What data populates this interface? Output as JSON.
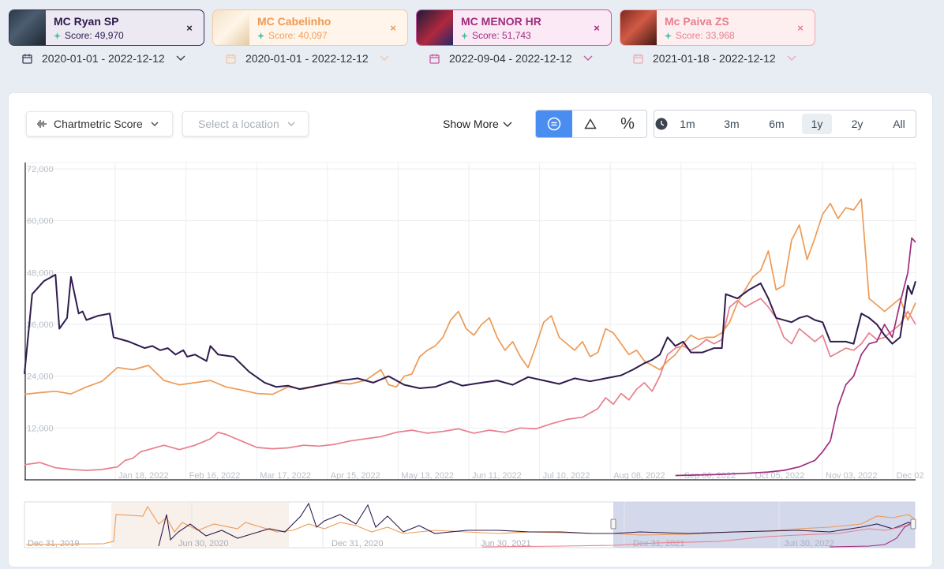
{
  "artists": [
    {
      "name": "MC Ryan SP",
      "score_label": "Score:",
      "score": "49,970",
      "date_range": "2020-01-01 - 2022-12-12",
      "color": "#2f1b4e",
      "bg": "#ece9f3",
      "border": "#3a2657",
      "score_color": "#2f1b4e",
      "close": "×"
    },
    {
      "name": "MC Cabelinho",
      "score_label": "Score:",
      "score": "40,097",
      "date_range": "2020-01-01 - 2022-12-12",
      "color": "#ee9a55",
      "bg": "#fff5ea",
      "border": "#f5c79d",
      "score_color": "#f0a05f",
      "close": "×"
    },
    {
      "name": "MC MENOR HR",
      "score_label": "Score:",
      "score": "51,743",
      "date_range": "2022-09-04 - 2022-12-12",
      "color": "#a02c7e",
      "bg": "#fbeaf5",
      "border": "#c7579f",
      "score_color": "#a02c7e",
      "close": "×"
    },
    {
      "name": "Mc Paiva ZS",
      "score_label": "Score:",
      "score": "33,968",
      "date_range": "2021-01-18 - 2022-12-12",
      "color": "#e87f8c",
      "bg": "#fdeef0",
      "border": "#f2a9b2",
      "score_color": "#e5828f",
      "close": "×"
    }
  ],
  "toolbar": {
    "metric_label": "Chartmetric Score",
    "location_placeholder": "Select a location",
    "show_more_label": "Show More",
    "ranges": [
      "1m",
      "3m",
      "6m",
      "1y",
      "2y",
      "All"
    ],
    "active_range": "1y"
  },
  "chart_data": {
    "type": "line",
    "y_ticks": [
      "72,000",
      "60,000",
      "48,000",
      "36,000",
      "24,000",
      "12,000"
    ],
    "x_ticks": [
      "Jan 18, 2022",
      "Feb 16, 2022",
      "Mar 17, 2022",
      "Apr 15, 2022",
      "May 13, 2022",
      "Jun 11, 2022",
      "Jul 10, 2022",
      "Aug 08, 2022",
      "Sep 06, 2022",
      "Oct 05, 2022",
      "Nov 03, 2022",
      "Dec 02"
    ],
    "ylim": [
      0,
      72000
    ],
    "series": [
      {
        "name": "MC Ryan SP",
        "color": "#2f1b4e",
        "points": [
          [
            0,
            24500
          ],
          [
            2,
            43000
          ],
          [
            5,
            46000
          ],
          [
            8,
            47500
          ],
          [
            9,
            35000
          ],
          [
            11,
            37500
          ],
          [
            12,
            47000
          ],
          [
            14,
            38500
          ],
          [
            15,
            39000
          ],
          [
            16,
            37000
          ],
          [
            19,
            38000
          ],
          [
            22,
            38500
          ],
          [
            23,
            33000
          ],
          [
            27,
            32000
          ],
          [
            31,
            30500
          ],
          [
            33,
            31000
          ],
          [
            35,
            30000
          ],
          [
            37,
            30500
          ],
          [
            39,
            29000
          ],
          [
            41,
            30000
          ],
          [
            42,
            28500
          ],
          [
            44,
            29000
          ],
          [
            47,
            27500
          ],
          [
            48,
            31000
          ],
          [
            50,
            29000
          ],
          [
            54,
            28500
          ],
          [
            58,
            25000
          ],
          [
            62,
            22500
          ],
          [
            65,
            21500
          ],
          [
            68,
            21800
          ],
          [
            71,
            21000
          ],
          [
            74,
            21500
          ],
          [
            78,
            22200
          ],
          [
            82,
            23000
          ],
          [
            86,
            23500
          ],
          [
            90,
            22500
          ],
          [
            94,
            24000
          ],
          [
            98,
            22000
          ],
          [
            102,
            21200
          ],
          [
            106,
            21500
          ],
          [
            110,
            22800
          ],
          [
            113,
            21800
          ],
          [
            118,
            22500
          ],
          [
            122,
            23000
          ],
          [
            126,
            22000
          ],
          [
            130,
            23800
          ],
          [
            134,
            23000
          ],
          [
            138,
            22200
          ],
          [
            142,
            23500
          ],
          [
            146,
            22800
          ],
          [
            150,
            23500
          ],
          [
            154,
            24200
          ],
          [
            157,
            25500
          ],
          [
            160,
            27000
          ],
          [
            162,
            27800
          ],
          [
            164,
            29000
          ],
          [
            166,
            33000
          ],
          [
            168,
            31000
          ],
          [
            170,
            32000
          ],
          [
            172,
            29500
          ],
          [
            175,
            29500
          ],
          [
            178,
            30500
          ],
          [
            180,
            30500
          ],
          [
            181,
            43000
          ],
          [
            184,
            42000
          ],
          [
            187,
            44000
          ],
          [
            190,
            45500
          ],
          [
            192,
            42000
          ],
          [
            194,
            37500
          ],
          [
            198,
            36500
          ],
          [
            200,
            37500
          ],
          [
            202,
            38000
          ],
          [
            204,
            37000
          ],
          [
            206,
            36500
          ],
          [
            208,
            32000
          ],
          [
            212,
            32000
          ],
          [
            214,
            31500
          ],
          [
            216,
            38500
          ],
          [
            218,
            37500
          ],
          [
            220,
            36000
          ],
          [
            222,
            33500
          ],
          [
            224,
            31500
          ],
          [
            226,
            33000
          ],
          [
            228,
            45000
          ],
          [
            229,
            43000
          ],
          [
            230,
            46000
          ]
        ]
      },
      {
        "name": "MC Cabelinho",
        "color": "#ee9a55",
        "points": [
          [
            0,
            19800
          ],
          [
            4,
            20200
          ],
          [
            8,
            20500
          ],
          [
            12,
            19900
          ],
          [
            16,
            21500
          ],
          [
            20,
            22800
          ],
          [
            24,
            26000
          ],
          [
            28,
            25500
          ],
          [
            32,
            26500
          ],
          [
            36,
            23000
          ],
          [
            40,
            22000
          ],
          [
            44,
            22500
          ],
          [
            48,
            23000
          ],
          [
            52,
            21500
          ],
          [
            56,
            20800
          ],
          [
            60,
            20000
          ],
          [
            64,
            19800
          ],
          [
            68,
            21500
          ],
          [
            72,
            21000
          ],
          [
            76,
            21800
          ],
          [
            80,
            22500
          ],
          [
            84,
            22200
          ],
          [
            88,
            23000
          ],
          [
            92,
            25500
          ],
          [
            94,
            22000
          ],
          [
            96,
            21500
          ],
          [
            98,
            24000
          ],
          [
            100,
            24500
          ],
          [
            102,
            28500
          ],
          [
            104,
            30000
          ],
          [
            106,
            31000
          ],
          [
            108,
            33000
          ],
          [
            110,
            37000
          ],
          [
            112,
            39000
          ],
          [
            114,
            35000
          ],
          [
            116,
            33500
          ],
          [
            118,
            36000
          ],
          [
            120,
            37500
          ],
          [
            122,
            33000
          ],
          [
            124,
            30000
          ],
          [
            126,
            32000
          ],
          [
            128,
            28500
          ],
          [
            130,
            26000
          ],
          [
            132,
            31000
          ],
          [
            134,
            36500
          ],
          [
            136,
            38000
          ],
          [
            138,
            33000
          ],
          [
            140,
            31500
          ],
          [
            142,
            30000
          ],
          [
            144,
            32000
          ],
          [
            146,
            28500
          ],
          [
            148,
            29500
          ],
          [
            150,
            35000
          ],
          [
            152,
            34000
          ],
          [
            154,
            31500
          ],
          [
            156,
            29000
          ],
          [
            158,
            30000
          ],
          [
            160,
            27500
          ],
          [
            162,
            26500
          ],
          [
            164,
            25500
          ],
          [
            166,
            27500
          ],
          [
            168,
            29000
          ],
          [
            170,
            31500
          ],
          [
            172,
            33500
          ],
          [
            174,
            32500
          ],
          [
            176,
            33000
          ],
          [
            178,
            33000
          ],
          [
            180,
            34000
          ],
          [
            182,
            36500
          ],
          [
            184,
            41000
          ],
          [
            186,
            44000
          ],
          [
            188,
            47000
          ],
          [
            190,
            48500
          ],
          [
            192,
            53000
          ],
          [
            194,
            44000
          ],
          [
            196,
            45000
          ],
          [
            198,
            55500
          ],
          [
            200,
            59000
          ],
          [
            202,
            51000
          ],
          [
            204,
            56000
          ],
          [
            206,
            61500
          ],
          [
            208,
            64000
          ],
          [
            210,
            60500
          ],
          [
            212,
            63000
          ],
          [
            214,
            62500
          ],
          [
            216,
            65000
          ],
          [
            218,
            42000
          ],
          [
            220,
            40500
          ],
          [
            222,
            39000
          ],
          [
            224,
            40500
          ],
          [
            226,
            42000
          ],
          [
            228,
            37000
          ],
          [
            230,
            41000
          ]
        ]
      },
      {
        "name": "MC MENOR HR",
        "color": "#a02c7e",
        "points": [
          [
            168,
            1000
          ],
          [
            178,
            1200
          ],
          [
            186,
            1500
          ],
          [
            192,
            1800
          ],
          [
            196,
            2200
          ],
          [
            200,
            3000
          ],
          [
            204,
            4500
          ],
          [
            206,
            6500
          ],
          [
            208,
            9000
          ],
          [
            210,
            17000
          ],
          [
            212,
            22000
          ],
          [
            214,
            24000
          ],
          [
            216,
            29000
          ],
          [
            218,
            31500
          ],
          [
            220,
            32000
          ],
          [
            222,
            36000
          ],
          [
            224,
            33000
          ],
          [
            226,
            41000
          ],
          [
            228,
            48000
          ],
          [
            229,
            56000
          ],
          [
            230,
            55000
          ]
        ]
      },
      {
        "name": "Mc Paiva ZS",
        "color": "#e87f8c",
        "points": [
          [
            0,
            3500
          ],
          [
            4,
            4000
          ],
          [
            8,
            2800
          ],
          [
            12,
            2400
          ],
          [
            16,
            2200
          ],
          [
            20,
            2400
          ],
          [
            24,
            3000
          ],
          [
            26,
            4500
          ],
          [
            28,
            5000
          ],
          [
            30,
            6500
          ],
          [
            32,
            7000
          ],
          [
            36,
            8000
          ],
          [
            40,
            7000
          ],
          [
            44,
            8000
          ],
          [
            48,
            9500
          ],
          [
            50,
            11000
          ],
          [
            52,
            10500
          ],
          [
            56,
            9000
          ],
          [
            60,
            7500
          ],
          [
            64,
            7200
          ],
          [
            68,
            7400
          ],
          [
            72,
            8000
          ],
          [
            76,
            7800
          ],
          [
            80,
            8200
          ],
          [
            84,
            9000
          ],
          [
            88,
            9500
          ],
          [
            92,
            10000
          ],
          [
            96,
            11000
          ],
          [
            100,
            11500
          ],
          [
            104,
            10800
          ],
          [
            108,
            11200
          ],
          [
            112,
            11800
          ],
          [
            116,
            10800
          ],
          [
            120,
            11500
          ],
          [
            124,
            11000
          ],
          [
            128,
            12000
          ],
          [
            132,
            11800
          ],
          [
            136,
            13000
          ],
          [
            140,
            14000
          ],
          [
            144,
            14500
          ],
          [
            148,
            16500
          ],
          [
            150,
            19000
          ],
          [
            152,
            17500
          ],
          [
            154,
            20000
          ],
          [
            156,
            18500
          ],
          [
            158,
            21000
          ],
          [
            160,
            22500
          ],
          [
            162,
            20500
          ],
          [
            164,
            24000
          ],
          [
            166,
            29000
          ],
          [
            168,
            30500
          ],
          [
            170,
            31000
          ],
          [
            172,
            30000
          ],
          [
            174,
            31000
          ],
          [
            176,
            32500
          ],
          [
            178,
            31500
          ],
          [
            180,
            32500
          ],
          [
            182,
            40000
          ],
          [
            184,
            41500
          ],
          [
            186,
            40000
          ],
          [
            188,
            41000
          ],
          [
            190,
            42000
          ],
          [
            192,
            40000
          ],
          [
            194,
            37500
          ],
          [
            196,
            33000
          ],
          [
            198,
            31500
          ],
          [
            200,
            35000
          ],
          [
            202,
            33500
          ],
          [
            204,
            32000
          ],
          [
            206,
            33500
          ],
          [
            208,
            28500
          ],
          [
            210,
            29500
          ],
          [
            212,
            30500
          ],
          [
            214,
            30000
          ],
          [
            216,
            31500
          ],
          [
            218,
            34000
          ],
          [
            220,
            32500
          ],
          [
            222,
            33000
          ],
          [
            224,
            34500
          ],
          [
            226,
            36000
          ],
          [
            228,
            39000
          ],
          [
            230,
            36000
          ]
        ]
      }
    ]
  },
  "navigator": {
    "labels": [
      "Dec 31, 2019",
      "Jun 30, 2020",
      "Dec 31, 2020",
      "Jun 30, 2021",
      "Dec 31, 2021",
      "Jun 30, 2022"
    ]
  }
}
